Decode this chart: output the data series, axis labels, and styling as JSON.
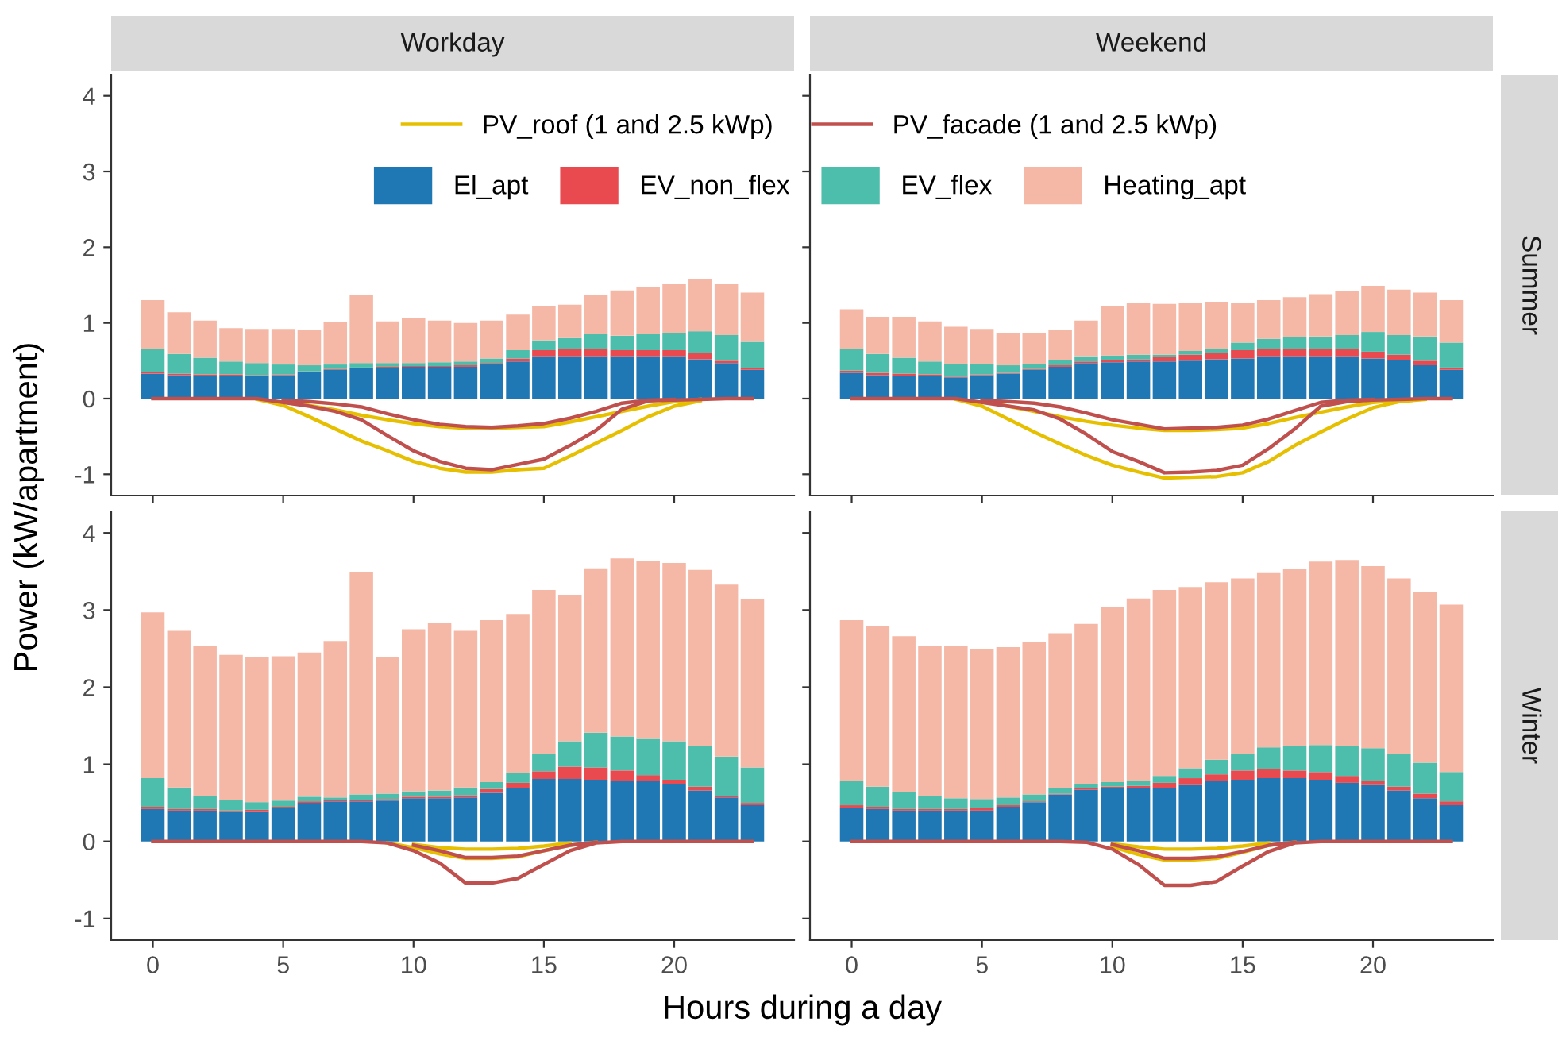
{
  "chart_data": [
    {
      "type": "bar",
      "stacked": true,
      "title": "Workday",
      "xlabel": "Hours during a day",
      "ylabel": "Power (kW/apartment)",
      "legend": "top",
      "tick_labels": "y",
      "x": [
        0,
        1,
        2,
        3,
        4,
        5,
        6,
        7,
        8,
        9,
        10,
        11,
        12,
        13,
        14,
        15,
        16,
        17,
        18,
        19,
        20,
        21,
        22,
        23
      ],
      "xlim": [
        -1.6,
        24.6
      ],
      "ylim": [
        -1.28,
        4.28
      ],
      "xticks": [
        0,
        5,
        10,
        15,
        20
      ],
      "yticks": [
        -1,
        0,
        1,
        2,
        3,
        4
      ],
      "series": [
        {
          "name": "El_apt",
          "color": "#1f78b4",
          "values": [
            0.33,
            0.31,
            0.3,
            0.3,
            0.3,
            0.31,
            0.35,
            0.38,
            0.4,
            0.4,
            0.42,
            0.42,
            0.42,
            0.45,
            0.49,
            0.56,
            0.56,
            0.56,
            0.56,
            0.56,
            0.56,
            0.52,
            0.47,
            0.38
          ]
        },
        {
          "name": "EV_non_flex",
          "color": "#e84a4f",
          "values": [
            0.02,
            0.02,
            0.02,
            0.02,
            0.01,
            0.01,
            0.01,
            0.01,
            0.01,
            0.02,
            0.01,
            0.01,
            0.02,
            0.02,
            0.04,
            0.08,
            0.09,
            0.1,
            0.08,
            0.08,
            0.08,
            0.08,
            0.03,
            0.03
          ]
        },
        {
          "name": "EV_flex",
          "color": "#4dbdac",
          "values": [
            0.31,
            0.26,
            0.22,
            0.17,
            0.16,
            0.13,
            0.08,
            0.06,
            0.06,
            0.05,
            0.04,
            0.05,
            0.05,
            0.06,
            0.11,
            0.13,
            0.15,
            0.19,
            0.19,
            0.21,
            0.23,
            0.29,
            0.34,
            0.34
          ]
        },
        {
          "name": "Heating_apt",
          "color": "#f5b8a6",
          "values": [
            0.64,
            0.55,
            0.49,
            0.44,
            0.45,
            0.47,
            0.47,
            0.56,
            0.9,
            0.55,
            0.6,
            0.55,
            0.51,
            0.5,
            0.47,
            0.45,
            0.44,
            0.52,
            0.6,
            0.62,
            0.64,
            0.69,
            0.67,
            0.65
          ]
        },
        {
          "name": "PV_roof (1 and 2.5 kWp)",
          "type": "line",
          "color": "#e6c000",
          "values": [
            null,
            null,
            null,
            null,
            null,
            -0.04,
            -0.09,
            -0.15,
            -0.22,
            -0.28,
            -0.33,
            -0.37,
            -0.39,
            -0.39,
            -0.38,
            -0.37,
            -0.31,
            -0.24,
            -0.17,
            -0.1,
            -0.04,
            -0.01,
            null,
            null
          ]
        },
        {
          "type": "line",
          "color": "#e6c000",
          "values": [
            null,
            null,
            null,
            null,
            -0.01,
            -0.09,
            -0.24,
            -0.4,
            -0.56,
            -0.69,
            -0.83,
            -0.92,
            -0.97,
            -0.97,
            -0.94,
            -0.92,
            -0.76,
            -0.59,
            -0.42,
            -0.24,
            -0.1,
            -0.03,
            null,
            null
          ]
        },
        {
          "name": "PV_facade (1 and 2.5 kWp)",
          "type": "line",
          "color": "#c0504d",
          "values": [
            null,
            null,
            null,
            null,
            null,
            -0.02,
            -0.04,
            -0.07,
            -0.11,
            -0.2,
            -0.28,
            -0.34,
            -0.37,
            -0.38,
            -0.36,
            -0.33,
            -0.26,
            -0.17,
            -0.06,
            -0.02,
            -0.01,
            null,
            null,
            null
          ]
        },
        {
          "type": "line",
          "color": "#c0504d",
          "values": [
            0,
            0,
            0,
            0,
            0,
            -0.05,
            -0.1,
            -0.17,
            -0.28,
            -0.49,
            -0.69,
            -0.83,
            -0.92,
            -0.94,
            -0.87,
            -0.8,
            -0.62,
            -0.42,
            -0.14,
            -0.03,
            -0.02,
            -0.01,
            0,
            0
          ]
        }
      ]
    },
    {
      "type": "bar",
      "stacked": true,
      "title": "Weekend",
      "annotations": [
        "Summer"
      ],
      "tick_labels": false,
      "x": [
        0,
        1,
        2,
        3,
        4,
        5,
        6,
        7,
        8,
        9,
        10,
        11,
        12,
        13,
        14,
        15,
        16,
        17,
        18,
        19,
        20,
        21,
        22,
        23
      ],
      "xlim": [
        -1.6,
        24.6
      ],
      "ylim": [
        -1.28,
        4.28
      ],
      "xticks": [
        0,
        5,
        10,
        15,
        20
      ],
      "yticks": [
        -1,
        0,
        1,
        2,
        3,
        4
      ],
      "series": [
        {
          "color": "#1f78b4",
          "values": [
            0.34,
            0.31,
            0.3,
            0.3,
            0.28,
            0.31,
            0.33,
            0.38,
            0.42,
            0.47,
            0.48,
            0.49,
            0.49,
            0.5,
            0.52,
            0.53,
            0.56,
            0.56,
            0.56,
            0.56,
            0.53,
            0.51,
            0.44,
            0.38
          ]
        },
        {
          "color": "#e84a4f",
          "values": [
            0.03,
            0.03,
            0.03,
            0.02,
            0.01,
            0.01,
            0.01,
            0.01,
            0.02,
            0.02,
            0.03,
            0.03,
            0.06,
            0.08,
            0.08,
            0.11,
            0.1,
            0.1,
            0.09,
            0.09,
            0.09,
            0.07,
            0.06,
            0.03
          ]
        },
        {
          "color": "#4dbdac",
          "values": [
            0.28,
            0.25,
            0.21,
            0.17,
            0.17,
            0.14,
            0.1,
            0.07,
            0.07,
            0.07,
            0.06,
            0.06,
            0.03,
            0.05,
            0.06,
            0.1,
            0.13,
            0.15,
            0.17,
            0.19,
            0.26,
            0.26,
            0.32,
            0.33
          ]
        },
        {
          "color": "#f5b8a6",
          "values": [
            0.53,
            0.49,
            0.54,
            0.53,
            0.49,
            0.46,
            0.43,
            0.4,
            0.4,
            0.47,
            0.65,
            0.68,
            0.67,
            0.63,
            0.62,
            0.53,
            0.51,
            0.53,
            0.56,
            0.58,
            0.61,
            0.6,
            0.58,
            0.56
          ]
        },
        {
          "type": "line",
          "color": "#e6c000",
          "values": [
            null,
            null,
            null,
            null,
            null,
            -0.04,
            -0.1,
            -0.17,
            -0.24,
            -0.3,
            -0.35,
            -0.39,
            -0.42,
            -0.42,
            -0.41,
            -0.39,
            -0.33,
            -0.25,
            -0.18,
            -0.11,
            -0.05,
            -0.02,
            null,
            null
          ]
        },
        {
          "type": "line",
          "color": "#e6c000",
          "values": [
            null,
            null,
            null,
            null,
            -0.01,
            -0.1,
            -0.27,
            -0.44,
            -0.6,
            -0.75,
            -0.88,
            -0.97,
            -1.05,
            -1.04,
            -1.03,
            -0.98,
            -0.83,
            -0.62,
            -0.44,
            -0.27,
            -0.12,
            -0.04,
            -0.01,
            null
          ]
        },
        {
          "type": "line",
          "color": "#c0504d",
          "values": [
            null,
            null,
            null,
            null,
            null,
            -0.02,
            -0.04,
            -0.06,
            -0.11,
            -0.19,
            -0.28,
            -0.34,
            -0.4,
            -0.39,
            -0.38,
            -0.35,
            -0.27,
            -0.16,
            -0.05,
            -0.02,
            -0.01,
            null,
            null,
            null
          ]
        },
        {
          "type": "line",
          "color": "#c0504d",
          "values": [
            0,
            0,
            0,
            0,
            0,
            -0.05,
            -0.1,
            -0.15,
            -0.27,
            -0.47,
            -0.7,
            -0.83,
            -0.98,
            -0.97,
            -0.95,
            -0.88,
            -0.66,
            -0.4,
            -0.1,
            -0.04,
            -0.02,
            -0.01,
            0,
            0
          ]
        }
      ]
    },
    {
      "type": "bar",
      "stacked": true,
      "x": [
        0,
        1,
        2,
        3,
        4,
        5,
        6,
        7,
        8,
        9,
        10,
        11,
        12,
        13,
        14,
        15,
        16,
        17,
        18,
        19,
        20,
        21,
        22,
        23
      ],
      "xlim": [
        -1.6,
        24.6
      ],
      "ylim": [
        -1.28,
        4.28
      ],
      "xticks": [
        0,
        5,
        10,
        15,
        20
      ],
      "yticks": [
        -1,
        0,
        1,
        2,
        3,
        4
      ],
      "series": [
        {
          "color": "#1f78b4",
          "values": [
            0.42,
            0.4,
            0.4,
            0.38,
            0.38,
            0.43,
            0.5,
            0.52,
            0.52,
            0.53,
            0.56,
            0.56,
            0.57,
            0.63,
            0.69,
            0.81,
            0.81,
            0.8,
            0.78,
            0.78,
            0.74,
            0.66,
            0.57,
            0.47
          ]
        },
        {
          "color": "#e84a4f",
          "values": [
            0.03,
            0.02,
            0.02,
            0.02,
            0.03,
            0.02,
            0.02,
            0.02,
            0.02,
            0.02,
            0.02,
            0.02,
            0.03,
            0.05,
            0.07,
            0.1,
            0.16,
            0.16,
            0.14,
            0.08,
            0.06,
            0.05,
            0.02,
            0.03
          ]
        },
        {
          "color": "#4dbdac",
          "values": [
            0.37,
            0.28,
            0.17,
            0.14,
            0.1,
            0.08,
            0.06,
            0.03,
            0.07,
            0.07,
            0.07,
            0.08,
            0.1,
            0.09,
            0.13,
            0.22,
            0.33,
            0.45,
            0.44,
            0.47,
            0.5,
            0.53,
            0.51,
            0.46
          ]
        },
        {
          "color": "#f5b8a6",
          "values": [
            2.15,
            2.03,
            1.94,
            1.88,
            1.88,
            1.87,
            1.87,
            2.03,
            2.88,
            1.77,
            2.1,
            2.17,
            2.03,
            2.1,
            2.06,
            2.13,
            1.9,
            2.13,
            2.31,
            2.31,
            2.31,
            2.28,
            2.23,
            2.18
          ]
        },
        {
          "type": "line",
          "color": "#e6c000",
          "values": [
            null,
            null,
            null,
            null,
            null,
            null,
            null,
            null,
            null,
            null,
            -0.04,
            -0.08,
            -0.1,
            -0.1,
            -0.09,
            -0.06,
            -0.02,
            null,
            null,
            null,
            null,
            null,
            null,
            null
          ]
        },
        {
          "type": "line",
          "color": "#e6c000",
          "values": [
            null,
            null,
            null,
            null,
            null,
            null,
            null,
            null,
            null,
            -0.02,
            -0.08,
            -0.16,
            -0.22,
            -0.22,
            -0.2,
            -0.12,
            -0.05,
            -0.01,
            null,
            null,
            null,
            null,
            null,
            null
          ]
        },
        {
          "type": "line",
          "color": "#c0504d",
          "values": [
            null,
            null,
            null,
            null,
            null,
            null,
            null,
            null,
            null,
            null,
            -0.05,
            -0.12,
            -0.21,
            -0.21,
            -0.19,
            -0.12,
            -0.05,
            -0.01,
            null,
            null,
            null,
            null,
            null,
            null
          ]
        },
        {
          "type": "line",
          "color": "#c0504d",
          "values": [
            0,
            0,
            0,
            0,
            0,
            0,
            0,
            0,
            0,
            -0.02,
            -0.12,
            -0.28,
            -0.54,
            -0.54,
            -0.48,
            -0.3,
            -0.12,
            -0.02,
            0,
            0,
            0,
            0,
            0,
            0
          ]
        }
      ]
    },
    {
      "type": "bar",
      "stacked": true,
      "annotations": [
        "Winter"
      ],
      "tick_labels": "x",
      "x": [
        0,
        1,
        2,
        3,
        4,
        5,
        6,
        7,
        8,
        9,
        10,
        11,
        12,
        13,
        14,
        15,
        16,
        17,
        18,
        19,
        20,
        21,
        22,
        23
      ],
      "xlim": [
        -1.6,
        24.6
      ],
      "ylim": [
        -1.28,
        4.28
      ],
      "xticks": [
        0,
        5,
        10,
        15,
        20
      ],
      "yticks": [
        -1,
        0,
        1,
        2,
        3,
        4
      ],
      "series": [
        {
          "color": "#1f78b4",
          "values": [
            0.43,
            0.42,
            0.4,
            0.4,
            0.4,
            0.4,
            0.45,
            0.51,
            0.61,
            0.67,
            0.69,
            0.69,
            0.69,
            0.73,
            0.78,
            0.8,
            0.82,
            0.82,
            0.8,
            0.76,
            0.73,
            0.66,
            0.56,
            0.47
          ]
        },
        {
          "color": "#e84a4f",
          "values": [
            0.04,
            0.03,
            0.02,
            0.02,
            0.02,
            0.03,
            0.02,
            0.01,
            0.01,
            0.02,
            0.02,
            0.03,
            0.07,
            0.09,
            0.09,
            0.12,
            0.12,
            0.1,
            0.1,
            0.09,
            0.06,
            0.05,
            0.06,
            0.05
          ]
        },
        {
          "color": "#4dbdac",
          "values": [
            0.31,
            0.26,
            0.22,
            0.17,
            0.14,
            0.12,
            0.1,
            0.09,
            0.07,
            0.05,
            0.06,
            0.07,
            0.09,
            0.13,
            0.19,
            0.21,
            0.28,
            0.32,
            0.35,
            0.39,
            0.42,
            0.42,
            0.4,
            0.38
          ]
        },
        {
          "color": "#f5b8a6",
          "values": [
            2.09,
            2.08,
            2.02,
            1.95,
            1.98,
            1.95,
            1.95,
            1.97,
            2.01,
            2.08,
            2.27,
            2.36,
            2.41,
            2.35,
            2.3,
            2.28,
            2.26,
            2.29,
            2.38,
            2.41,
            2.36,
            2.28,
            2.22,
            2.17
          ]
        },
        {
          "type": "line",
          "color": "#e6c000",
          "values": [
            null,
            null,
            null,
            null,
            null,
            null,
            null,
            null,
            null,
            null,
            -0.03,
            -0.07,
            -0.1,
            -0.1,
            -0.09,
            -0.06,
            -0.02,
            null,
            null,
            null,
            null,
            null,
            null,
            null
          ]
        },
        {
          "type": "line",
          "color": "#e6c000",
          "values": [
            null,
            null,
            null,
            null,
            null,
            null,
            null,
            null,
            null,
            null,
            -0.07,
            -0.17,
            -0.24,
            -0.24,
            -0.22,
            -0.14,
            -0.05,
            -0.01,
            null,
            null,
            null,
            null,
            null,
            null
          ]
        },
        {
          "type": "line",
          "color": "#c0504d",
          "values": [
            null,
            null,
            null,
            null,
            null,
            null,
            null,
            null,
            null,
            null,
            -0.04,
            -0.12,
            -0.22,
            -0.22,
            -0.2,
            -0.13,
            -0.05,
            -0.01,
            null,
            null,
            null,
            null,
            null,
            null
          ]
        },
        {
          "type": "line",
          "color": "#c0504d",
          "values": [
            0,
            0,
            0,
            0,
            0,
            0,
            0,
            0,
            0,
            -0.01,
            -0.1,
            -0.3,
            -0.57,
            -0.57,
            -0.52,
            -0.32,
            -0.13,
            -0.02,
            0,
            0,
            0,
            0,
            0,
            0
          ]
        }
      ]
    }
  ]
}
